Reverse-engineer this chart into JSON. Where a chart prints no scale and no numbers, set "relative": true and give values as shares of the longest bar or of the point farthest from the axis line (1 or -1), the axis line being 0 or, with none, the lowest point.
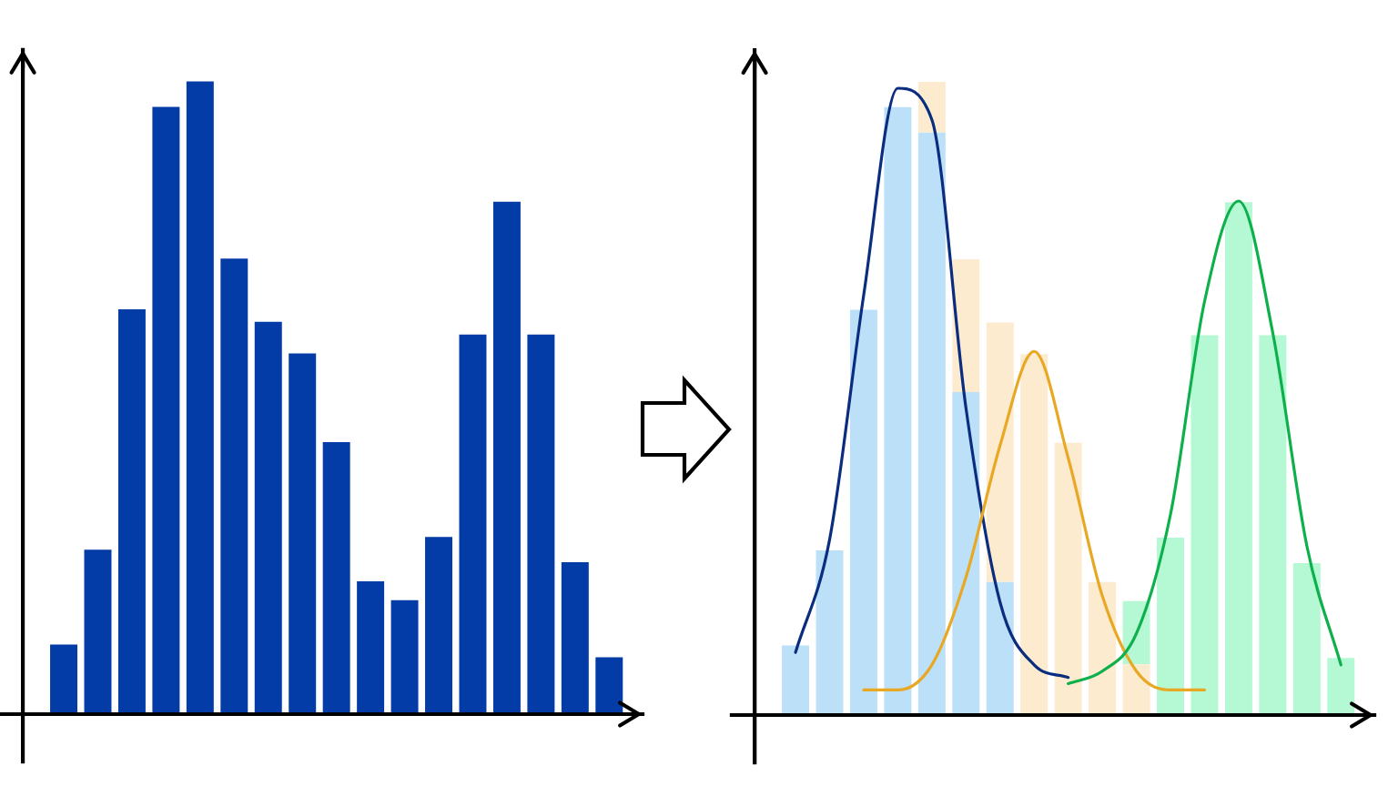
{
  "chart_data": [
    {
      "type": "bar",
      "relative": true,
      "color": "#033ba7",
      "categories": [
        null,
        null,
        null,
        null,
        null,
        null,
        null,
        null,
        null,
        null,
        null,
        null,
        null,
        null,
        null,
        null,
        null
      ],
      "values": [
        0.11,
        0.26,
        0.64,
        0.96,
        1,
        0.72,
        0.62,
        0.57,
        0.43,
        0.21,
        0.18,
        0.28,
        0.6,
        0.81,
        0.6,
        0.24,
        0.09
      ]
    },
    {
      "type": "bar",
      "relative": true,
      "stacked": true,
      "categories": [
        null,
        null,
        null,
        null,
        null,
        null,
        null,
        null,
        null,
        null,
        null,
        null,
        null,
        null,
        null,
        null,
        null
      ],
      "series": [
        {
          "color": "#bde0f9",
          "values": [
            0.11,
            0.26,
            0.64,
            0.96,
            0.92,
            0.51,
            0.21,
            null,
            null,
            null,
            null,
            null,
            null,
            null,
            null,
            null,
            null
          ]
        },
        {
          "color": "#fcebcf",
          "values": [
            null,
            null,
            null,
            null,
            0.08,
            0.21,
            0.41,
            0.57,
            0.43,
            0.21,
            0.08,
            null,
            null,
            null,
            null,
            null,
            null
          ]
        },
        {
          "color": "#b4f9d4",
          "values": [
            null,
            null,
            null,
            null,
            null,
            null,
            null,
            null,
            null,
            null,
            0.1,
            0.28,
            0.6,
            0.81,
            0.6,
            0.24,
            0.09
          ]
        }
      ]
    },
    {
      "type": "line",
      "relative": true,
      "categories": [
        null,
        null,
        null,
        null,
        null,
        null,
        null,
        null,
        null,
        null,
        null,
        null,
        null,
        null,
        null,
        null,
        null
      ],
      "series": [
        {
          "color": "#0b2d80",
          "values": [
            0.1,
            0.28,
            0.67,
            1,
            0.95,
            0.49,
            0.18,
            0.08,
            0.06,
            null,
            null,
            null,
            null,
            null,
            null,
            null,
            null
          ]
        },
        {
          "color": "#e8a823",
          "values": [
            null,
            null,
            0.04,
            0.04,
            0.08,
            0.22,
            0.43,
            0.58,
            0.41,
            0.19,
            0.07,
            0.04,
            0.04,
            null,
            null,
            null,
            null
          ]
        },
        {
          "color": "#0db04b",
          "values": [
            null,
            null,
            null,
            null,
            null,
            null,
            null,
            null,
            0.05,
            0.07,
            0.13,
            0.32,
            0.66,
            0.82,
            0.61,
            0.27,
            0.08
          ]
        }
      ]
    }
  ]
}
